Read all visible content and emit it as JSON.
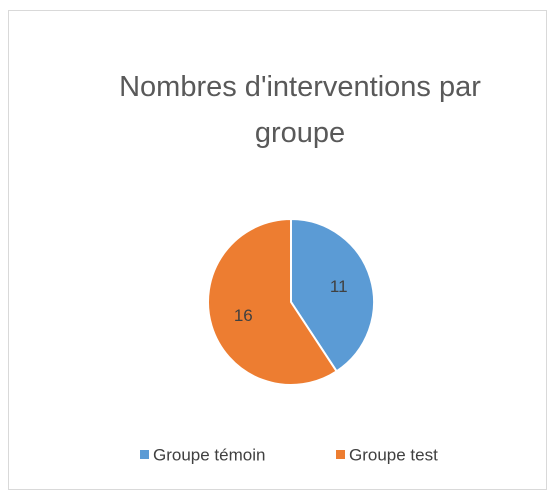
{
  "chart_data": {
    "type": "pie",
    "title": "Nombres d'interventions par groupe",
    "categories": [
      "Groupe témoin",
      "Groupe test"
    ],
    "values": [
      11,
      16
    ],
    "colors": [
      "#5b9bd5",
      "#ed7d31"
    ],
    "legend": "bottom"
  }
}
